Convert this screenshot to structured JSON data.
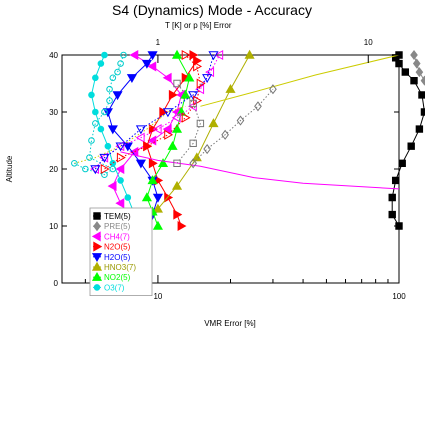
{
  "chart_data": {
    "type": "line",
    "title": "S4 (Dynamics) Mode - Accuracy",
    "top_axis_label": "T [K] or p [%] Error",
    "top_ticks": [
      {
        "value": 1,
        "label": "1"
      },
      {
        "value": 10,
        "label": "10"
      }
    ],
    "xlabel": "VMR Error [%]",
    "ylabel": "Altitude",
    "x_scale": "log",
    "xlim": [
      4,
      100
    ],
    "ylim": [
      0,
      40
    ],
    "x_ticks": [
      {
        "value": 10,
        "label": "10"
      },
      {
        "value": 100,
        "label": "100"
      }
    ],
    "y_ticks": [
      {
        "value": 0,
        "label": "0"
      },
      {
        "value": 10,
        "label": "10"
      },
      {
        "value": 20,
        "label": "20"
      },
      {
        "value": 30,
        "label": "30"
      },
      {
        "value": 40,
        "label": "40"
      }
    ],
    "legend_position": "left",
    "series": [
      {
        "name": "TEM(5)",
        "color": "#000000",
        "marker": "square",
        "dash": "solid",
        "axis": "top",
        "x": [
          14,
          13,
          13,
          13.5,
          14.5,
          16,
          17.5,
          18.5,
          18,
          16.5,
          15,
          14,
          13.5,
          14
        ],
        "y": [
          10,
          12,
          15,
          18,
          21,
          24,
          27,
          30,
          33,
          35.5,
          37,
          38.5,
          39.5,
          40
        ]
      },
      {
        "name": "PRE(5)",
        "color": "#888888",
        "marker": "diamond",
        "dash": "solid",
        "axis": "top",
        "x": [
          30,
          30,
          29,
          28,
          26,
          24,
          22,
          20.5,
          19.5,
          18.5,
          17.5,
          17,
          16.5
        ],
        "y": [
          11,
          14,
          17,
          20,
          23,
          26,
          28.5,
          31,
          33.5,
          35.5,
          37,
          38.5,
          40
        ]
      },
      {
        "name": "CH4(7)",
        "color": "#ff00ff",
        "marker": "triangle-left",
        "dash": "solid",
        "axis": "bottom",
        "x": [
          9,
          7.5,
          7,
          6.5,
          7,
          8,
          9.5,
          11,
          12,
          12.5,
          11,
          9.5,
          8
        ],
        "y": [
          10,
          12,
          14,
          17,
          20,
          23,
          25,
          27,
          30,
          33,
          36,
          38,
          40
        ]
      },
      {
        "name": "N2O(5)",
        "color": "#ff0000",
        "marker": "triangle-right",
        "dash": "solid",
        "axis": "bottom",
        "x": [
          12.5,
          12,
          11,
          10,
          9.5,
          9,
          9.5,
          10.5,
          11.5,
          13,
          14.5,
          14
        ],
        "y": [
          10,
          12,
          15,
          18,
          21,
          24,
          27,
          30,
          33,
          36,
          39,
          40
        ]
      },
      {
        "name": "H2O(5)",
        "color": "#0000ff",
        "marker": "triangle-down",
        "dash": "solid",
        "axis": "bottom",
        "x": [
          8.5,
          9.5,
          10,
          9.5,
          8.5,
          7.5,
          6.5,
          6.2,
          6.8,
          7.8,
          9,
          9.5
        ],
        "y": [
          10,
          12,
          15,
          18,
          21,
          24,
          27,
          30,
          33,
          36,
          38.5,
          40
        ]
      },
      {
        "name": "HNO3(7)",
        "color": "#b0b000",
        "marker": "triangle-up",
        "dash": "solid",
        "axis": "bottom",
        "x": [
          8.5,
          10,
          12,
          14.5,
          17,
          20,
          24
        ],
        "y": [
          10,
          13,
          17,
          22,
          28,
          34,
          40
        ]
      },
      {
        "name": "NO2(5)",
        "color": "#00ff00",
        "marker": "triangle-up",
        "dash": "solid",
        "axis": "bottom",
        "x": [
          10,
          9.5,
          9,
          9.5,
          10.5,
          11.5,
          12,
          12.5,
          13,
          13.5,
          12
        ],
        "y": [
          10,
          12.5,
          15,
          18,
          21,
          24,
          27,
          30,
          33,
          36,
          40
        ]
      },
      {
        "name": "O3(7)",
        "color": "#00dddd",
        "marker": "circle",
        "dash": "solid",
        "axis": "bottom",
        "x": [
          9,
          8,
          7.5,
          7,
          6.5,
          6.2,
          5.8,
          5.5,
          5.3,
          5.5,
          5.8,
          6
        ],
        "y": [
          10,
          12,
          15,
          18,
          21,
          24,
          27,
          30,
          33,
          36,
          38.5,
          40
        ]
      },
      {
        "name": "",
        "color": "#ff00ff",
        "marker": "none",
        "dash": "solid",
        "axis": "bottom",
        "x": [
          7,
          10,
          15,
          25,
          40,
          100
        ],
        "y": [
          23,
          21.5,
          20.5,
          18.5,
          17.5,
          16.5
        ]
      },
      {
        "name": "",
        "color": "#cccc00",
        "marker": "none",
        "dash": "solid",
        "axis": "bottom",
        "x": [
          15,
          25,
          45,
          100
        ],
        "y": [
          31,
          33.5,
          36.5,
          40
        ]
      },
      {
        "name": "",
        "color": "#cccc00",
        "marker": "none",
        "dash": "dotted",
        "axis": "bottom",
        "x": [
          4.5,
          5.5,
          7,
          9,
          11,
          13
        ],
        "y": [
          21,
          22,
          24,
          27,
          30,
          31
        ]
      },
      {
        "name": "",
        "color": "#00cccc",
        "marker": "circle-open",
        "dash": "dotted",
        "axis": "bottom",
        "x": [
          4.5,
          5,
          6,
          6.5,
          5.2,
          5.3,
          5.5,
          6,
          6.3,
          6.3,
          6.5,
          6.8,
          7,
          7.2
        ],
        "y": [
          21,
          20,
          19,
          20,
          22,
          25,
          28,
          30,
          32,
          34,
          36,
          37,
          38.5,
          40
        ]
      },
      {
        "name": "",
        "color": "#ff00ff",
        "marker": "triangle-left-open",
        "dash": "dotted",
        "axis": "bottom",
        "x": [
          5.5,
          6,
          7,
          8.5,
          10,
          12,
          14,
          15,
          16.5,
          18
        ],
        "y": [
          20,
          22,
          24,
          25.5,
          27,
          29,
          31,
          34,
          37,
          40
        ]
      },
      {
        "name": "",
        "color": "#0000ff",
        "marker": "triangle-down-open",
        "dash": "dotted",
        "axis": "bottom",
        "x": [
          5.5,
          6,
          7,
          8.5,
          11,
          14,
          16,
          17
        ],
        "y": [
          20,
          22,
          24,
          27,
          30,
          33,
          36,
          40
        ]
      },
      {
        "name": "",
        "color": "#ff0000",
        "marker": "triangle-right-open",
        "dash": "dotted",
        "axis": "bottom",
        "x": [
          6,
          7,
          9,
          11,
          13,
          14.5,
          15,
          14.5,
          13
        ],
        "y": [
          20,
          22,
          24,
          26,
          29,
          32,
          35,
          38,
          40
        ]
      },
      {
        "name": "",
        "color": "#777777",
        "marker": "diamond-open",
        "dash": "dotted",
        "axis": "bottom",
        "x": [
          14,
          16,
          19,
          22,
          26,
          30
        ],
        "y": [
          21,
          23.5,
          26,
          28.5,
          31,
          34
        ]
      },
      {
        "name": "",
        "color": "#777777",
        "marker": "square-open",
        "dash": "dotted",
        "axis": "bottom",
        "x": [
          12,
          14,
          15,
          14,
          12
        ],
        "y": [
          21,
          24.5,
          28,
          31.5,
          35
        ]
      }
    ]
  }
}
